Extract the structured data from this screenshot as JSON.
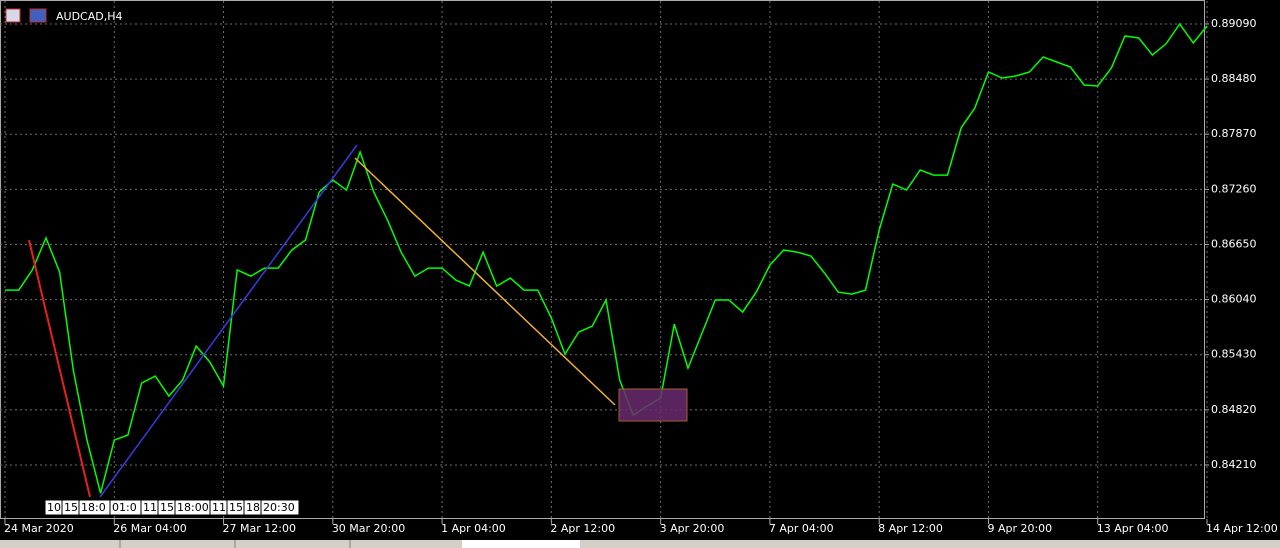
{
  "title": "AUDCAD,H4",
  "time_markers": [
    [
      "10",
      "15",
      "18:0",
      "01:0",
      "11",
      "15",
      "18:00"
    ],
    [
      "11",
      "15",
      "18",
      "20:30"
    ]
  ],
  "chart_data": {
    "type": "line",
    "title": "AUDCAD,H4",
    "color": "#00ff00",
    "grid": true,
    "categories": [
      "24 Mar 2020",
      null,
      null,
      null,
      null,
      null,
      null,
      null,
      "26 Mar 04:00",
      null,
      null,
      null,
      null,
      null,
      null,
      null,
      "27 Mar 12:00",
      null,
      null,
      null,
      null,
      null,
      null,
      null,
      "30 Mar 20:00",
      null,
      null,
      null,
      null,
      null,
      null,
      null,
      "1 Apr 04:00",
      null,
      null,
      null,
      null,
      null,
      null,
      null,
      "2 Apr 12:00",
      null,
      null,
      null,
      null,
      null,
      null,
      null,
      "3 Apr 20:00",
      null,
      null,
      null,
      null,
      null,
      null,
      null,
      "7 Apr 04:00",
      null,
      null,
      null,
      null,
      null,
      null,
      null,
      "8 Apr 12:00",
      null,
      null,
      null,
      null,
      null,
      null,
      null,
      "9 Apr 20:00",
      null,
      null,
      null,
      null,
      null,
      null,
      null,
      "13 Apr 04:00",
      null,
      null,
      null,
      null,
      null,
      null,
      null,
      "14 Apr 12:00"
    ],
    "values": [
      0.86145,
      0.86145,
      0.86367,
      0.86721,
      0.86345,
      0.8526,
      0.84485,
      0.83898,
      0.84485,
      0.8454,
      0.85116,
      0.85193,
      0.84972,
      0.85149,
      0.85525,
      0.85348,
      0.85083,
      0.86367,
      0.863,
      0.86389,
      0.86389,
      0.86588,
      0.86699,
      0.8723,
      0.87363,
      0.87252,
      0.87673,
      0.8723,
      0.8692,
      0.86566,
      0.863,
      0.86389,
      0.86389,
      0.86256,
      0.8619,
      0.86566,
      0.8619,
      0.86278,
      0.86145,
      0.86145,
      0.85835,
      0.85437,
      0.8568,
      0.85747,
      0.86035,
      0.85149,
      0.84762,
      0.84861,
      0.8495,
      0.85769,
      0.85282,
      0.85658,
      0.86035,
      0.86035,
      0.85902,
      0.86123,
      0.86422,
      0.86588,
      0.86566,
      0.86522,
      0.86334,
      0.86123,
      0.86101,
      0.86145,
      0.8681,
      0.87319,
      0.87252,
      0.87474,
      0.87418,
      0.87418,
      0.87939,
      0.8816,
      0.88559,
      0.88492,
      0.88514,
      0.88559,
      0.88725,
      0.88669,
      0.88614,
      0.88415,
      0.88404,
      0.88603,
      0.88957,
      0.88935,
      0.88747,
      0.88869,
      0.8909,
      0.8888,
      0.89068
    ],
    "ylim": [
      0.83612,
      0.89311
    ],
    "yticks": [
      {
        "value": 0.8909,
        "label": "0.89090"
      },
      {
        "value": 0.8848,
        "label": "0.88480"
      },
      {
        "value": 0.8787,
        "label": "0.87870"
      },
      {
        "value": 0.8726,
        "label": "0.87260"
      },
      {
        "value": 0.8665,
        "label": "0.86650"
      },
      {
        "value": 0.8604,
        "label": "0.86040"
      },
      {
        "value": 0.8543,
        "label": "0.85430"
      },
      {
        "value": 0.8482,
        "label": "0.84820"
      },
      {
        "value": 0.8421,
        "label": "0.84210"
      }
    ]
  }
}
